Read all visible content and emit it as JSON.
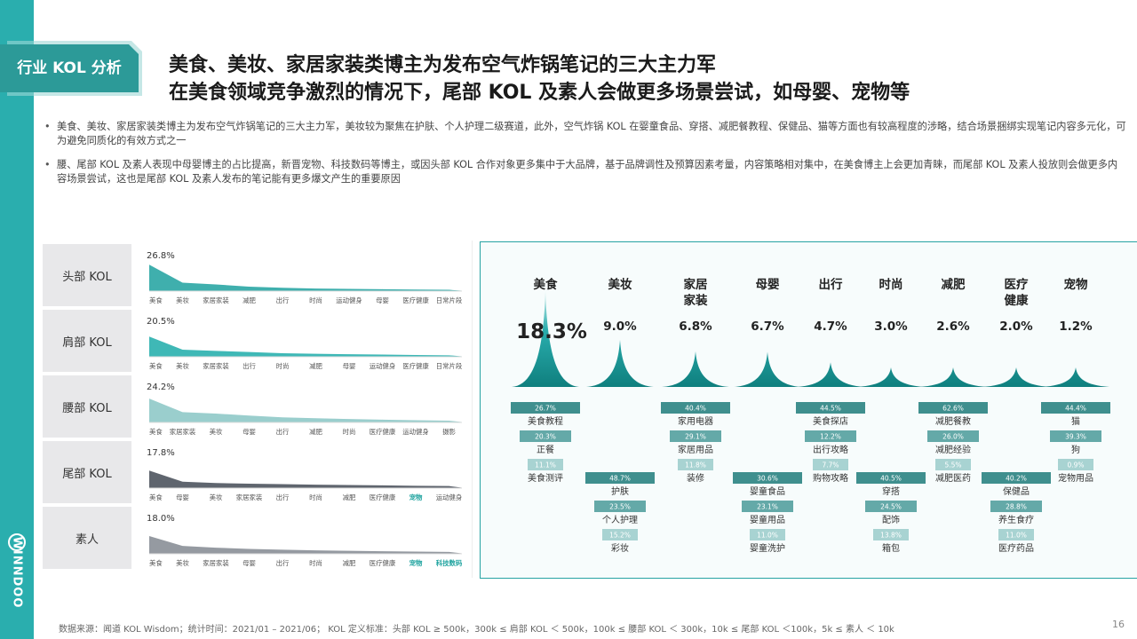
{
  "header": {
    "tag": "行业 KOL 分析",
    "title_line1": "美食、美妆、家居家装类博主为发布空气炸锅笔记的三大主力军",
    "title_line2": "在美食领域竞争激烈的情况下，尾部 KOL 及素人会做更多场景尝试，如母婴、宠物等"
  },
  "brand": {
    "name": "WINNDOO"
  },
  "bullets": [
    "美食、美妆、家居家装类博主为发布空气炸锅笔记的三大主力军，美妆较为聚焦在护肤、个人护理二级赛道，此外，空气炸锅 KOL 在婴童食品、穿搭、减肥餐教程、保健品、猫等方面也有较高程度的涉略，结合场景捆绑实现笔记内容多元化，可为避免同质化的有效方式之一",
    "腰、尾部 KOL 及素人表现中母婴博主的占比提高，新晋宠物、科技数码等博主，或因头部 KOL 合作对象更多集中于大品牌，基于品牌调性及预算因素考量，内容策略相对集中，在美食博主上会更加青睐，而尾部 KOL 及素人投放则会做更多内容场景尝试，这也是尾部 KOL 及素人发布的笔记能有更多爆文产生的重要原因"
  ],
  "chart_data": [
    {
      "type": "area",
      "rows": [
        {
          "label": "头部 KOL",
          "top_value": "26.8%",
          "color": "#2aa6a4",
          "categories": [
            "美食",
            "美妆",
            "家居家装",
            "减肥",
            "出行",
            "时尚",
            "运动健身",
            "母婴",
            "医疗健康",
            "日常片段"
          ],
          "values": [
            26.8,
            8.6,
            6.8,
            4.5,
            3.4,
            2.6,
            2.2,
            1.9,
            1.6,
            1.3
          ],
          "highlight": []
        },
        {
          "label": "肩部 KOL",
          "top_value": "20.5%",
          "color": "#2ab0ae",
          "categories": [
            "美食",
            "美妆",
            "家居家装",
            "出行",
            "时尚",
            "减肥",
            "母婴",
            "运动健身",
            "医疗健康",
            "日常片段"
          ],
          "values": [
            20.5,
            7.2,
            6.0,
            4.8,
            3.6,
            3.0,
            2.6,
            2.2,
            1.8,
            1.5
          ],
          "highlight": []
        },
        {
          "label": "腰部 KOL",
          "top_value": "24.2%",
          "color": "#8fc9c8",
          "categories": [
            "美食",
            "家居家装",
            "美妆",
            "母婴",
            "出行",
            "减肥",
            "时尚",
            "医疗健康",
            "运动健身",
            "摄影"
          ],
          "values": [
            24.2,
            10.5,
            9.0,
            7.0,
            5.2,
            4.3,
            3.5,
            2.8,
            2.3,
            1.8
          ],
          "highlight": []
        },
        {
          "label": "尾部 KOL",
          "top_value": "17.8%",
          "color": "#4e545e",
          "categories": [
            "美食",
            "母婴",
            "美妆",
            "家居家装",
            "出行",
            "时尚",
            "减肥",
            "医疗健康",
            "宠物",
            "运动健身"
          ],
          "values": [
            17.8,
            6.5,
            5.2,
            4.5,
            4.0,
            3.5,
            3.1,
            2.8,
            2.4,
            2.1
          ],
          "highlight": [
            "宠物"
          ]
        },
        {
          "label": "素人",
          "top_value": "18.0%",
          "color": "#8a8f97",
          "categories": [
            "美食",
            "美妆",
            "家居家装",
            "母婴",
            "出行",
            "时尚",
            "减肥",
            "医疗健康",
            "宠物",
            "科技数码"
          ],
          "values": [
            18.0,
            8.0,
            6.2,
            5.0,
            4.2,
            3.5,
            3.0,
            2.6,
            2.2,
            1.9
          ],
          "highlight": [
            "宠物",
            "科技数码"
          ]
        }
      ]
    },
    {
      "type": "area",
      "categories": [
        "美食",
        "美妆",
        "家居\n家装",
        "母婴",
        "出行",
        "时尚",
        "减肥",
        "医疗\n健康",
        "宠物"
      ],
      "values": [
        18.3,
        9.0,
        6.8,
        6.7,
        4.7,
        3.0,
        2.6,
        2.0,
        1.2
      ],
      "value_labels": [
        "18.3%",
        "9.0%",
        "6.8%",
        "6.7%",
        "4.7%",
        "3.0%",
        "2.6%",
        "2.0%",
        "1.2%"
      ],
      "subcategories": [
        {
          "cat": "美食",
          "items": [
            {
              "name": "美食教程",
              "value": "26.7%"
            },
            {
              "name": "正餐",
              "value": "20.3%"
            },
            {
              "name": "美食测评",
              "value": "11.1%"
            }
          ]
        },
        {
          "cat": "美妆",
          "items": [
            {
              "name": "护肤",
              "value": "48.7%"
            },
            {
              "name": "个人护理",
              "value": "23.5%"
            },
            {
              "name": "彩妆",
              "value": "15.2%"
            }
          ]
        },
        {
          "cat": "家居家装",
          "items": [
            {
              "name": "家用电器",
              "value": "40.4%"
            },
            {
              "name": "家居用品",
              "value": "29.1%"
            },
            {
              "name": "装修",
              "value": "11.8%"
            }
          ]
        },
        {
          "cat": "母婴",
          "items": [
            {
              "name": "婴童食品",
              "value": "30.6%"
            },
            {
              "name": "婴童用品",
              "value": "23.1%"
            },
            {
              "name": "婴童洗护",
              "value": "11.0%"
            }
          ]
        },
        {
          "cat": "出行",
          "items": [
            {
              "name": "美食探店",
              "value": "44.5%"
            },
            {
              "name": "出行攻略",
              "value": "12.2%"
            },
            {
              "name": "购物攻略",
              "value": "7.7%"
            }
          ]
        },
        {
          "cat": "时尚",
          "items": [
            {
              "name": "穿搭",
              "value": "40.5%"
            },
            {
              "name": "配饰",
              "value": "24.5%"
            },
            {
              "name": "箱包",
              "value": "13.8%"
            }
          ]
        },
        {
          "cat": "减肥",
          "items": [
            {
              "name": "减肥餐教",
              "value": "62.6%"
            },
            {
              "name": "减肥经验",
              "value": "26.0%"
            },
            {
              "name": "减肥医药",
              "value": "5.5%"
            }
          ]
        },
        {
          "cat": "医疗健康",
          "items": [
            {
              "name": "保健品",
              "value": "40.2%"
            },
            {
              "name": "养生食疗",
              "value": "28.8%"
            },
            {
              "name": "医疗药品",
              "value": "11.0%"
            }
          ]
        },
        {
          "cat": "宠物",
          "items": [
            {
              "name": "猫",
              "value": "44.4%"
            },
            {
              "name": "狗",
              "value": "39.3%"
            },
            {
              "name": "宠物用品",
              "value": "0.9%"
            }
          ]
        }
      ]
    }
  ],
  "colors": {
    "accent": "#2aaeae",
    "bar_dark": "#3f8f8e",
    "bar_mid": "#64a9a8",
    "bar_light": "#a8d3d2",
    "highlight": "#1fa39f"
  },
  "footer": {
    "source": "数据来源：闻道 KOL Wisdom；统计时间：2021/01 – 2021/06； KOL 定义标准：头部 KOL ≥ 500k，300k ≤ 肩部 KOL ＜ 500k，100k ≤ 腰部 KOL ＜ 300k，10k ≤ 尾部 KOL ＜100k，5k ≤ 素人 ＜ 10k",
    "page": "16"
  }
}
